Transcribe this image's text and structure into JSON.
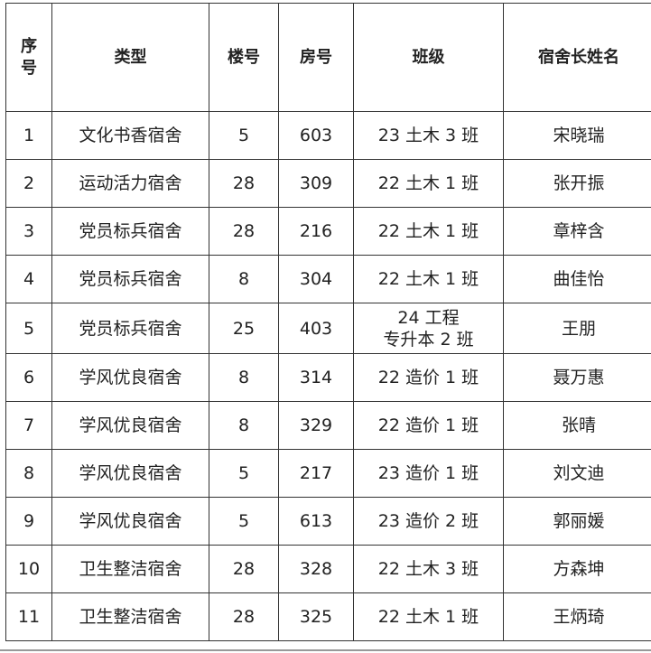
{
  "headers": [
    "序\n号",
    "类型",
    "楼号",
    "房号",
    "班级",
    "宿舍长姓名"
  ],
  "rows": [
    {
      "no": "1",
      "type": "文化书香宿舍",
      "building": "5",
      "room": "603",
      "class": "23 土木 3 班",
      "leader": "宋晓瑞"
    },
    {
      "no": "2",
      "type": "运动活力宿舍",
      "building": "28",
      "room": "309",
      "class": "22 土木 1 班",
      "leader": "张开振"
    },
    {
      "no": "3",
      "type": "党员标兵宿舍",
      "building": "28",
      "room": "216",
      "class": "22 土木 1 班",
      "leader": "章梓含"
    },
    {
      "no": "4",
      "type": "党员标兵宿舍",
      "building": "8",
      "room": "304",
      "class": "22 土木 1 班",
      "leader": "曲佳怡"
    },
    {
      "no": "5",
      "type": "党员标兵宿舍",
      "building": "25",
      "room": "403",
      "class": "24 工程\n专升本 2 班",
      "leader": "王朋"
    },
    {
      "no": "6",
      "type": "学风优良宿舍",
      "building": "8",
      "room": "314",
      "class": "22 造价 1 班",
      "leader": "聂万惠"
    },
    {
      "no": "7",
      "type": "学风优良宿舍",
      "building": "8",
      "room": "329",
      "class": "22 造价 1 班",
      "leader": "张晴"
    },
    {
      "no": "8",
      "type": "学风优良宿舍",
      "building": "5",
      "room": "217",
      "class": "23 造价 1 班",
      "leader": "刘文迪"
    },
    {
      "no": "9",
      "type": "学风优良宿舍",
      "building": "5",
      "room": "613",
      "class": "23 造价 2 班",
      "leader": "郭丽媛"
    },
    {
      "no": "10",
      "type": "卫生整洁宿舍",
      "building": "28",
      "room": "328",
      "class": "22 土木 3 班",
      "leader": "方森坤"
    },
    {
      "no": "11",
      "type": "卫生整洁宿舍",
      "building": "28",
      "room": "325",
      "class": "22 土木 1 班",
      "leader": "王炳琦"
    }
  ]
}
